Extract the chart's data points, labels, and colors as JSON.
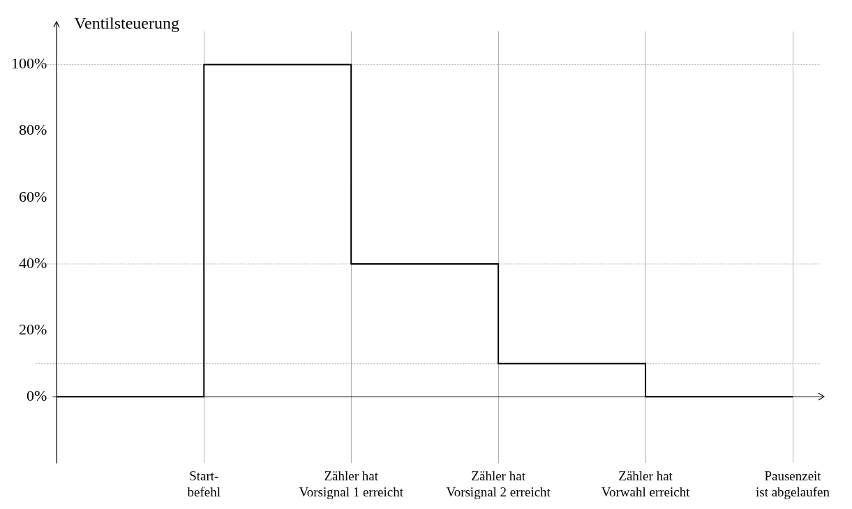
{
  "chart_data": {
    "type": "step",
    "ylabel": "Ventilsteuerung",
    "categories": [
      null,
      "Start-\nbefehl",
      "Zähler hat\nVorsignal 1 erreicht",
      "Zähler hat\nVorsignal 2 erreicht",
      "Zähler hat\nVorwahl erreicht",
      "Pausenzeit\nist abgelaufen"
    ],
    "series": [
      {
        "color": "#000000",
        "values": [
          0,
          100,
          40,
          10,
          0,
          0
        ]
      }
    ],
    "ylim": [
      -20,
      110
    ],
    "yticks": [
      {
        "value": 0,
        "label": "0%"
      },
      {
        "value": 20,
        "label": "20%"
      },
      {
        "value": 40,
        "label": "40%"
      },
      {
        "value": 60,
        "label": "60%"
      },
      {
        "value": 80,
        "label": "80%"
      },
      {
        "value": 100,
        "label": "100%"
      }
    ],
    "ref_lines": [
      {
        "axis": "y",
        "value": 100,
        "color": "#b0b0b0",
        "line_style": "dotted"
      },
      {
        "axis": "y",
        "value": 40,
        "color": "#b0b0b0",
        "line_style": "dotted"
      },
      {
        "axis": "y",
        "value": 10,
        "color": "#b0b0b0",
        "line_style": "dotted"
      }
    ],
    "grid": "x",
    "legend": false,
    "marker": "none",
    "line_style": "solid"
  }
}
